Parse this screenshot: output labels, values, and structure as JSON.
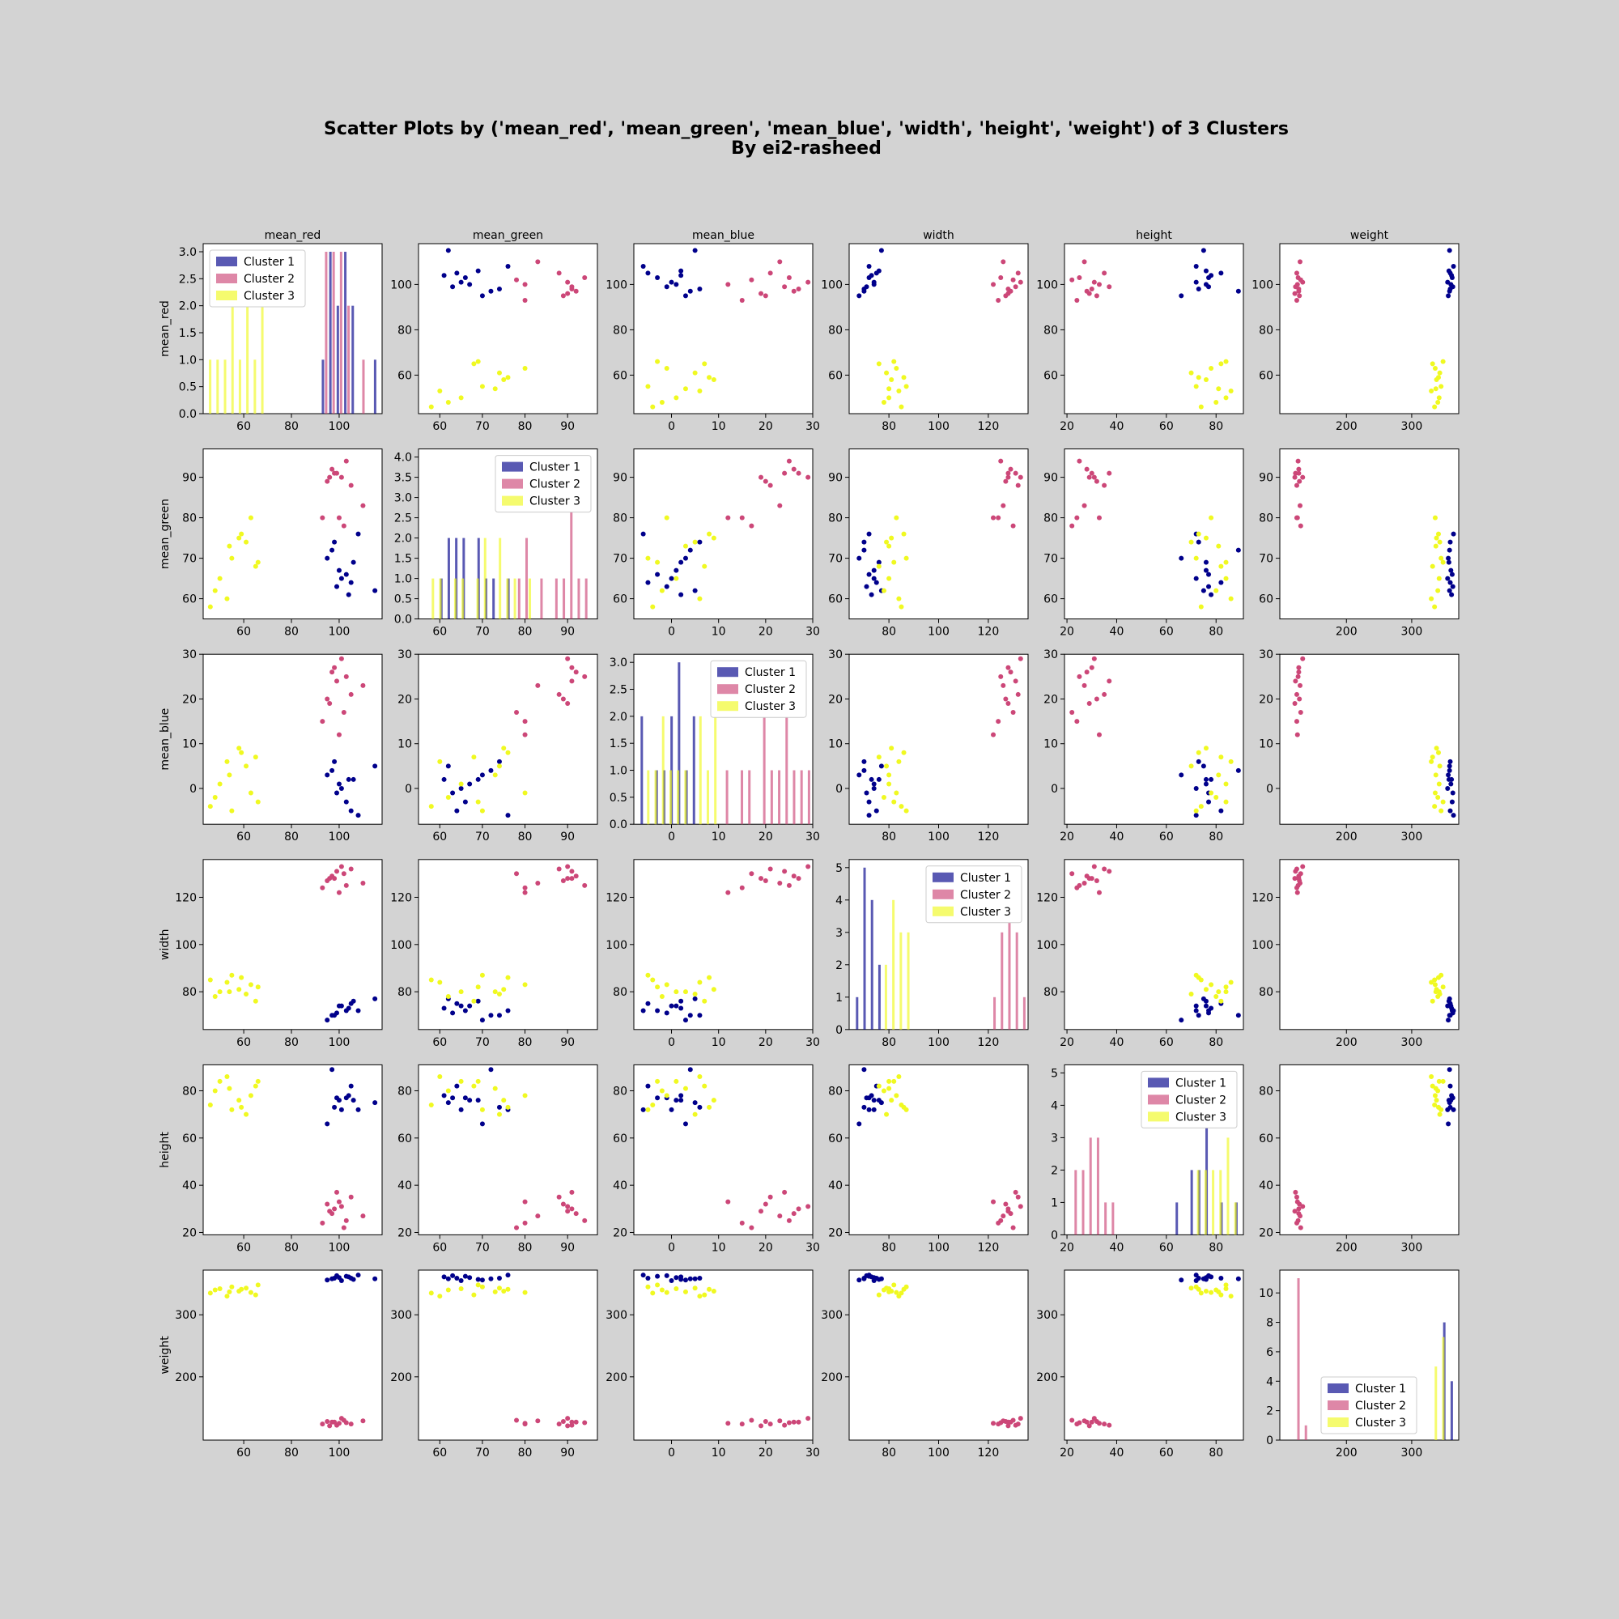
{
  "title_line1": "Scatter Plots by ('mean_red', 'mean_green', 'mean_blue', 'width', 'height', 'weight') of 3 Clusters",
  "title_line2": "By ei2-rasheed",
  "chart_data": {
    "type": "scatter",
    "variables": [
      "mean_red",
      "mean_green",
      "mean_blue",
      "width",
      "height",
      "weight"
    ],
    "cluster_names": [
      "Cluster 1",
      "Cluster 2",
      "Cluster 3"
    ],
    "cluster_colors": [
      "#00008b",
      "#cc4778",
      "#f0f921"
    ],
    "axis_ranges": {
      "mean_red": [
        43,
        118
      ],
      "mean_green": [
        55,
        97
      ],
      "mean_blue": [
        -8,
        30
      ],
      "width": [
        64,
        136
      ],
      "height": [
        19,
        91
      ],
      "weight": [
        98,
        372
      ]
    },
    "ticks": {
      "mean_red": [
        60,
        80,
        100
      ],
      "mean_green": [
        60,
        70,
        80,
        90
      ],
      "mean_blue": [
        0,
        10,
        20,
        30
      ],
      "width": [
        80,
        100,
        120
      ],
      "height": [
        20,
        40,
        60,
        80
      ],
      "weight": [
        200,
        300
      ]
    },
    "clusters": [
      {
        "name": "Cluster 1",
        "points": {
          "mean_red": [
            97,
            100,
            103,
            106,
            105,
            104,
            99,
            101,
            95,
            98,
            115,
            108
          ],
          "mean_green": [
            72,
            67,
            66,
            69,
            64,
            61,
            63,
            65,
            70,
            74,
            62,
            76
          ],
          "mean_blue": [
            4,
            1,
            -3,
            2,
            -5,
            2,
            -1,
            0,
            3,
            6,
            5,
            -6
          ],
          "width": [
            70,
            74,
            72,
            76,
            75,
            73,
            71,
            74,
            68,
            70,
            77,
            72
          ],
          "height": [
            89,
            76,
            77,
            76,
            82,
            78,
            77,
            72,
            66,
            73,
            75,
            72
          ],
          "weight": [
            358,
            360,
            362,
            357,
            359,
            361,
            363,
            355,
            356,
            359,
            358,
            364
          ]
        }
      },
      {
        "name": "Cluster 2",
        "points": {
          "mean_red": [
            93,
            95,
            97,
            99,
            101,
            103,
            96,
            100,
            102,
            110,
            105,
            98
          ],
          "mean_green": [
            80,
            89,
            92,
            91,
            90,
            94,
            90,
            80,
            78,
            83,
            88,
            91
          ],
          "mean_blue": [
            15,
            20,
            26,
            24,
            29,
            25,
            19,
            12,
            17,
            23,
            21,
            27
          ],
          "width": [
            124,
            127,
            129,
            131,
            133,
            125,
            128,
            122,
            130,
            126,
            132,
            128
          ],
          "height": [
            24,
            32,
            28,
            37,
            31,
            25,
            29,
            33,
            22,
            27,
            35,
            30
          ],
          "weight": [
            124,
            128,
            127,
            122,
            133,
            126,
            121,
            125,
            130,
            129,
            124,
            127
          ]
        }
      },
      {
        "name": "Cluster 3",
        "points": {
          "mean_red": [
            46,
            48,
            50,
            53,
            55,
            58,
            61,
            63,
            65,
            66,
            59,
            54
          ],
          "mean_green": [
            58,
            62,
            65,
            60,
            70,
            75,
            74,
            80,
            68,
            69,
            76,
            73
          ],
          "mean_blue": [
            -4,
            -2,
            1,
            6,
            -5,
            9,
            5,
            -1,
            7,
            -3,
            8,
            3
          ],
          "width": [
            85,
            78,
            80,
            84,
            87,
            81,
            79,
            83,
            76,
            82,
            86,
            80
          ],
          "height": [
            74,
            80,
            84,
            86,
            72,
            76,
            70,
            78,
            82,
            84,
            73,
            81
          ],
          "weight": [
            335,
            340,
            342,
            330,
            345,
            338,
            343,
            336,
            332,
            348,
            341,
            337
          ]
        }
      }
    ],
    "legend_labels": [
      "Cluster 1",
      "Cluster 2",
      "Cluster 3"
    ],
    "histogram_legend_position": "upper diagonal subplots (left in row 1, right in rows 2-6)"
  }
}
